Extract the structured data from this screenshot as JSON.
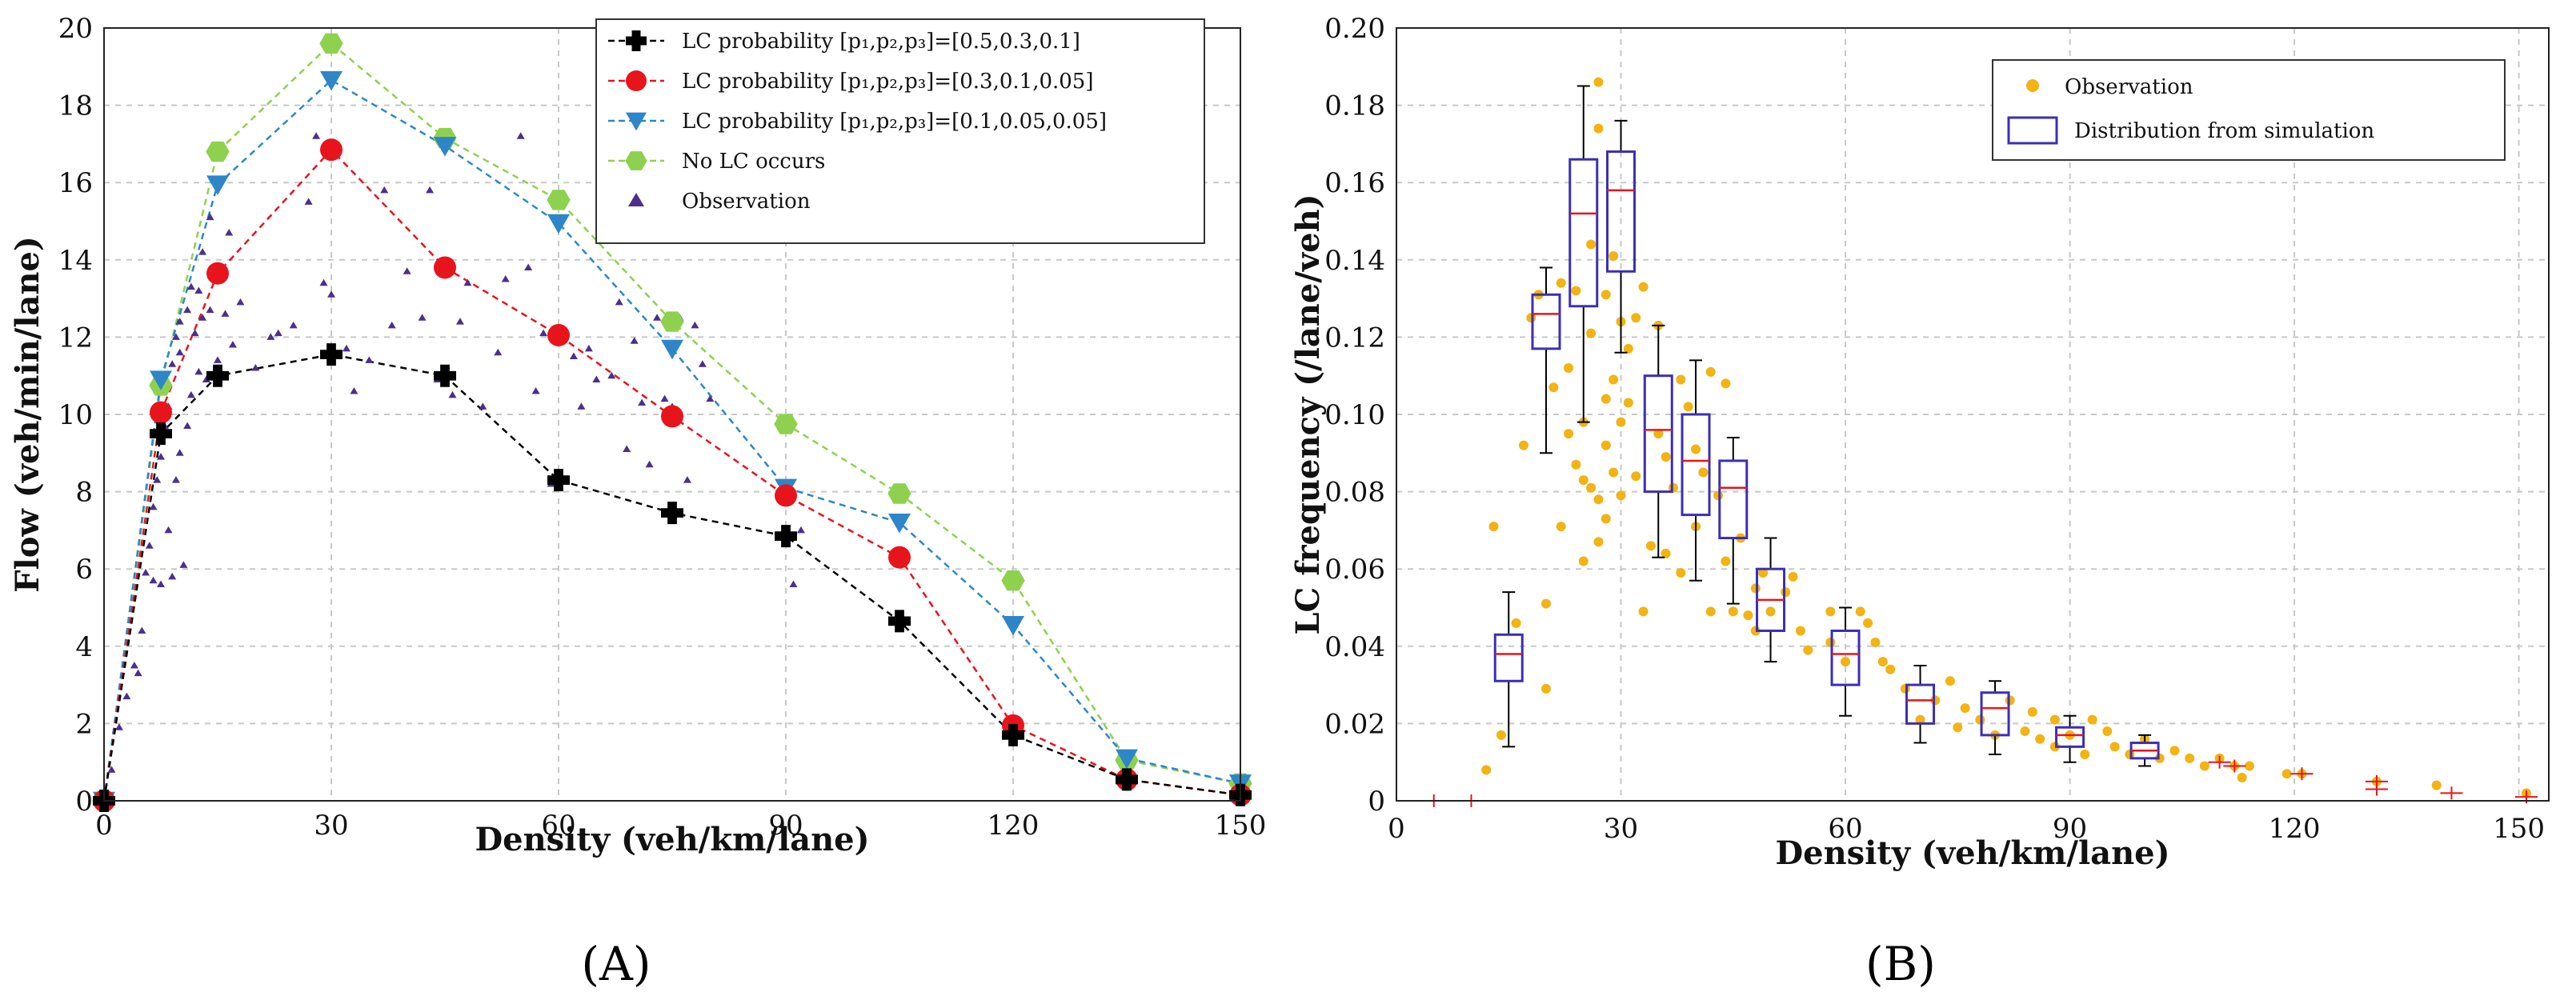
{
  "figure": {
    "panel_labels": [
      "(A)",
      "(B)"
    ]
  },
  "chart_data": [
    {
      "type": "line",
      "panel": "(A)",
      "xlabel": "Density (veh/km/lane)",
      "ylabel": "Flow (veh/min/lane)",
      "xlim": [
        0,
        150
      ],
      "ylim": [
        0,
        20
      ],
      "xticks": [
        0,
        30,
        60,
        90,
        120,
        150
      ],
      "yticks": [
        0,
        2,
        4,
        6,
        8,
        10,
        12,
        14,
        16,
        18,
        20
      ],
      "grid": true,
      "legend_position": "top-right",
      "x": [
        0,
        7.5,
        15,
        30,
        45,
        60,
        75,
        90,
        105,
        120,
        135,
        150
      ],
      "series": [
        {
          "name": "LC probability [p₁,p₂,p₃]=[0.5,0.3,0.1]",
          "marker": "plus",
          "color": "#000000",
          "values": [
            0,
            9.5,
            11.0,
            11.55,
            11.0,
            8.3,
            7.45,
            6.85,
            4.65,
            1.7,
            0.55,
            0.15
          ]
        },
        {
          "name": "LC probability [p₁,p₂,p₃]=[0.3,0.1,0.05]",
          "marker": "circle",
          "color": "#e8141b",
          "values": [
            0,
            10.05,
            13.65,
            16.85,
            13.8,
            12.05,
            9.95,
            7.9,
            6.3,
            1.95,
            0.55,
            0.15
          ]
        },
        {
          "name": "LC probability [p₁,p₂,p₃]=[0.1,0.05,0.05]",
          "marker": "triangle-down",
          "color": "#2e86c8",
          "values": [
            0,
            10.9,
            15.95,
            18.65,
            16.95,
            14.95,
            11.7,
            8.1,
            7.2,
            4.55,
            1.1,
            0.45
          ]
        },
        {
          "name": "No LC occurs",
          "marker": "hexagon",
          "color": "#8ed14f",
          "values": [
            0,
            10.75,
            16.8,
            19.6,
            17.15,
            15.55,
            12.4,
            9.75,
            7.95,
            5.7,
            1.05,
            0.45
          ]
        }
      ],
      "observation": {
        "name": "Observation",
        "marker": "triangle-up",
        "color": "#4b2f8c",
        "points": [
          [
            1,
            0.8
          ],
          [
            2,
            1.9
          ],
          [
            3,
            2.7
          ],
          [
            4,
            3.5
          ],
          [
            4.5,
            3.3
          ],
          [
            5,
            4.4
          ],
          [
            5.5,
            5.9
          ],
          [
            6,
            6.6
          ],
          [
            6.5,
            5.7
          ],
          [
            6.5,
            7.6
          ],
          [
            7,
            8.3
          ],
          [
            7.5,
            8.9
          ],
          [
            7.5,
            5.6
          ],
          [
            8,
            9.7
          ],
          [
            8.5,
            10.2
          ],
          [
            8.5,
            7.0
          ],
          [
            9,
            5.8
          ],
          [
            9,
            11.3
          ],
          [
            9.5,
            8.3
          ],
          [
            9.5,
            12.0
          ],
          [
            10,
            9.0
          ],
          [
            10,
            11.6
          ],
          [
            10,
            12.4
          ],
          [
            10.5,
            6.1
          ],
          [
            11,
            9.7
          ],
          [
            11,
            12.7
          ],
          [
            11.5,
            13.3
          ],
          [
            11.5,
            10.5
          ],
          [
            12,
            12.1
          ],
          [
            12.5,
            13.2
          ],
          [
            12.5,
            11.1
          ],
          [
            13,
            12.5
          ],
          [
            13,
            14.2
          ],
          [
            13.5,
            10.9
          ],
          [
            14,
            15.1
          ],
          [
            14,
            12.7
          ],
          [
            14.5,
            13.6
          ],
          [
            15,
            11.4
          ],
          [
            16,
            12.6
          ],
          [
            16.5,
            14.7
          ],
          [
            17,
            11.8
          ],
          [
            18,
            12.9
          ],
          [
            20,
            11.2
          ],
          [
            22,
            12.0
          ],
          [
            23,
            12.1
          ],
          [
            25,
            12.3
          ],
          [
            27,
            15.5
          ],
          [
            28,
            17.2
          ],
          [
            29,
            13.4
          ],
          [
            30,
            13.1
          ],
          [
            32,
            11.7
          ],
          [
            33,
            10.6
          ],
          [
            35,
            11.4
          ],
          [
            37,
            15.8
          ],
          [
            38,
            12.3
          ],
          [
            40,
            13.7
          ],
          [
            42,
            12.5
          ],
          [
            43,
            15.8
          ],
          [
            44,
            10.9
          ],
          [
            46,
            10.5
          ],
          [
            47,
            12.4
          ],
          [
            48,
            13.4
          ],
          [
            50,
            10.2
          ],
          [
            52,
            11.6
          ],
          [
            53,
            13.5
          ],
          [
            55,
            17.2
          ],
          [
            56,
            13.8
          ],
          [
            57,
            10.6
          ],
          [
            58,
            12.1
          ],
          [
            59,
            8.2
          ],
          [
            62,
            11.5
          ],
          [
            63,
            10.2
          ],
          [
            64,
            11.7
          ],
          [
            65,
            10.9
          ],
          [
            67,
            11.0
          ],
          [
            68,
            12.9
          ],
          [
            69,
            9.1
          ],
          [
            70,
            11.9
          ],
          [
            71,
            10.3
          ],
          [
            72,
            8.7
          ],
          [
            73,
            12.5
          ],
          [
            74,
            10.4
          ],
          [
            75,
            10.2
          ],
          [
            76,
            12.5
          ],
          [
            77,
            8.3
          ],
          [
            78,
            12.3
          ],
          [
            79,
            11.3
          ],
          [
            80,
            10.4
          ],
          [
            91,
            5.6
          ],
          [
            92,
            7.0
          ]
        ]
      }
    },
    {
      "type": "box",
      "panel": "(B)",
      "xlabel": "Density (veh/km/lane)",
      "ylabel": "LC frequency (/lane/veh)",
      "xlim": [
        0,
        154
      ],
      "ylim": [
        0,
        0.2
      ],
      "xticks": [
        0,
        30,
        60,
        90,
        120,
        150
      ],
      "yticks": [
        0,
        0.02,
        0.04,
        0.06,
        0.08,
        0.1,
        0.12,
        0.14,
        0.16,
        0.18,
        0.2
      ],
      "ytick_labels": [
        "0",
        "0.02",
        "0.04",
        "0.06",
        "0.08",
        "0.10",
        "0.12",
        "0.14",
        "0.16",
        "0.18",
        "0.20"
      ],
      "grid": true,
      "legend_position": "top-right",
      "observation": {
        "name": "Observation",
        "marker": "dot",
        "color": "#f2b313",
        "points": [
          [
            12,
            0.008
          ],
          [
            13,
            0.071
          ],
          [
            14,
            0.017
          ],
          [
            16,
            0.046
          ],
          [
            17,
            0.092
          ],
          [
            18,
            0.125
          ],
          [
            19,
            0.131
          ],
          [
            20,
            0.029
          ],
          [
            20,
            0.051
          ],
          [
            21,
            0.107
          ],
          [
            22,
            0.071
          ],
          [
            22,
            0.134
          ],
          [
            23,
            0.095
          ],
          [
            23,
            0.112
          ],
          [
            24,
            0.132
          ],
          [
            24,
            0.087
          ],
          [
            25,
            0.083
          ],
          [
            25,
            0.062
          ],
          [
            25,
            0.098
          ],
          [
            26,
            0.081
          ],
          [
            26,
            0.121
          ],
          [
            26,
            0.144
          ],
          [
            27,
            0.186
          ],
          [
            27,
            0.174
          ],
          [
            27,
            0.078
          ],
          [
            27,
            0.067
          ],
          [
            28,
            0.131
          ],
          [
            28,
            0.104
          ],
          [
            28,
            0.092
          ],
          [
            28,
            0.073
          ],
          [
            29,
            0.141
          ],
          [
            29,
            0.109
          ],
          [
            29,
            0.085
          ],
          [
            30,
            0.124
          ],
          [
            30,
            0.098
          ],
          [
            30,
            0.079
          ],
          [
            31,
            0.117
          ],
          [
            31,
            0.103
          ],
          [
            32,
            0.084
          ],
          [
            32,
            0.125
          ],
          [
            33,
            0.133
          ],
          [
            33,
            0.049
          ],
          [
            34,
            0.066
          ],
          [
            35,
            0.095
          ],
          [
            35,
            0.123
          ],
          [
            36,
            0.089
          ],
          [
            36,
            0.064
          ],
          [
            37,
            0.081
          ],
          [
            38,
            0.059
          ],
          [
            38,
            0.109
          ],
          [
            39,
            0.102
          ],
          [
            40,
            0.091
          ],
          [
            40,
            0.071
          ],
          [
            41,
            0.085
          ],
          [
            42,
            0.111
          ],
          [
            42,
            0.049
          ],
          [
            43,
            0.079
          ],
          [
            44,
            0.062
          ],
          [
            44,
            0.108
          ],
          [
            45,
            0.049
          ],
          [
            46,
            0.068
          ],
          [
            47,
            0.048
          ],
          [
            48,
            0.055
          ],
          [
            48,
            0.044
          ],
          [
            49,
            0.059
          ],
          [
            50,
            0.049
          ],
          [
            52,
            0.054
          ],
          [
            53,
            0.058
          ],
          [
            54,
            0.044
          ],
          [
            55,
            0.039
          ],
          [
            58,
            0.049
          ],
          [
            58,
            0.041
          ],
          [
            60,
            0.036
          ],
          [
            62,
            0.049
          ],
          [
            63,
            0.046
          ],
          [
            64,
            0.041
          ],
          [
            65,
            0.036
          ],
          [
            66,
            0.034
          ],
          [
            68,
            0.029
          ],
          [
            70,
            0.021
          ],
          [
            72,
            0.026
          ],
          [
            74,
            0.031
          ],
          [
            75,
            0.019
          ],
          [
            76,
            0.024
          ],
          [
            78,
            0.021
          ],
          [
            80,
            0.017
          ],
          [
            82,
            0.026
          ],
          [
            84,
            0.018
          ],
          [
            85,
            0.023
          ],
          [
            86,
            0.016
          ],
          [
            88,
            0.014
          ],
          [
            88,
            0.021
          ],
          [
            90,
            0.017
          ],
          [
            92,
            0.012
          ],
          [
            93,
            0.021
          ],
          [
            95,
            0.018
          ],
          [
            96,
            0.014
          ],
          [
            98,
            0.012
          ],
          [
            100,
            0.016
          ],
          [
            102,
            0.011
          ],
          [
            104,
            0.013
          ],
          [
            106,
            0.011
          ],
          [
            108,
            0.009
          ],
          [
            110,
            0.011
          ],
          [
            112,
            0.009
          ],
          [
            113,
            0.006
          ],
          [
            114,
            0.009
          ],
          [
            119,
            0.007
          ],
          [
            121,
            0.007
          ],
          [
            131,
            0.005
          ],
          [
            139,
            0.004
          ],
          [
            151,
            0.002
          ]
        ]
      },
      "boxes": {
        "name": "Distribution from simulation",
        "box_color": "#3b2fb6",
        "median_color": "#e8141b",
        "whisker_color": "#000000",
        "items": [
          {
            "x": 15,
            "min": 0.014,
            "q1": 0.031,
            "median": 0.038,
            "q3": 0.043,
            "max": 0.054
          },
          {
            "x": 20,
            "min": 0.09,
            "q1": 0.117,
            "median": 0.126,
            "q3": 0.131,
            "max": 0.138
          },
          {
            "x": 25,
            "min": 0.098,
            "q1": 0.128,
            "median": 0.152,
            "q3": 0.166,
            "max": 0.185
          },
          {
            "x": 30,
            "min": 0.116,
            "q1": 0.137,
            "median": 0.158,
            "q3": 0.168,
            "max": 0.176
          },
          {
            "x": 35,
            "min": 0.063,
            "q1": 0.08,
            "median": 0.096,
            "q3": 0.11,
            "max": 0.123
          },
          {
            "x": 40,
            "min": 0.057,
            "q1": 0.074,
            "median": 0.088,
            "q3": 0.1,
            "max": 0.114
          },
          {
            "x": 45,
            "min": 0.051,
            "q1": 0.068,
            "median": 0.081,
            "q3": 0.088,
            "max": 0.094
          },
          {
            "x": 50,
            "min": 0.036,
            "q1": 0.044,
            "median": 0.052,
            "q3": 0.06,
            "max": 0.068
          },
          {
            "x": 60,
            "min": 0.022,
            "q1": 0.03,
            "median": 0.038,
            "q3": 0.044,
            "max": 0.05
          },
          {
            "x": 70,
            "min": 0.015,
            "q1": 0.02,
            "median": 0.026,
            "q3": 0.03,
            "max": 0.035
          },
          {
            "x": 80,
            "min": 0.012,
            "q1": 0.017,
            "median": 0.024,
            "q3": 0.028,
            "max": 0.031
          },
          {
            "x": 90,
            "min": 0.01,
            "q1": 0.014,
            "median": 0.017,
            "q3": 0.019,
            "max": 0.022
          },
          {
            "x": 100,
            "min": 0.009,
            "q1": 0.011,
            "median": 0.013,
            "q3": 0.015,
            "max": 0.017
          }
        ],
        "outliers": [
          [
            5,
            0
          ],
          [
            10,
            0
          ],
          [
            110,
            0.01
          ],
          [
            112,
            0.009
          ],
          [
            121,
            0.007
          ],
          [
            131,
            0.005
          ],
          [
            131,
            0.003
          ],
          [
            141,
            0.002
          ],
          [
            151,
            0.001
          ]
        ]
      }
    }
  ]
}
